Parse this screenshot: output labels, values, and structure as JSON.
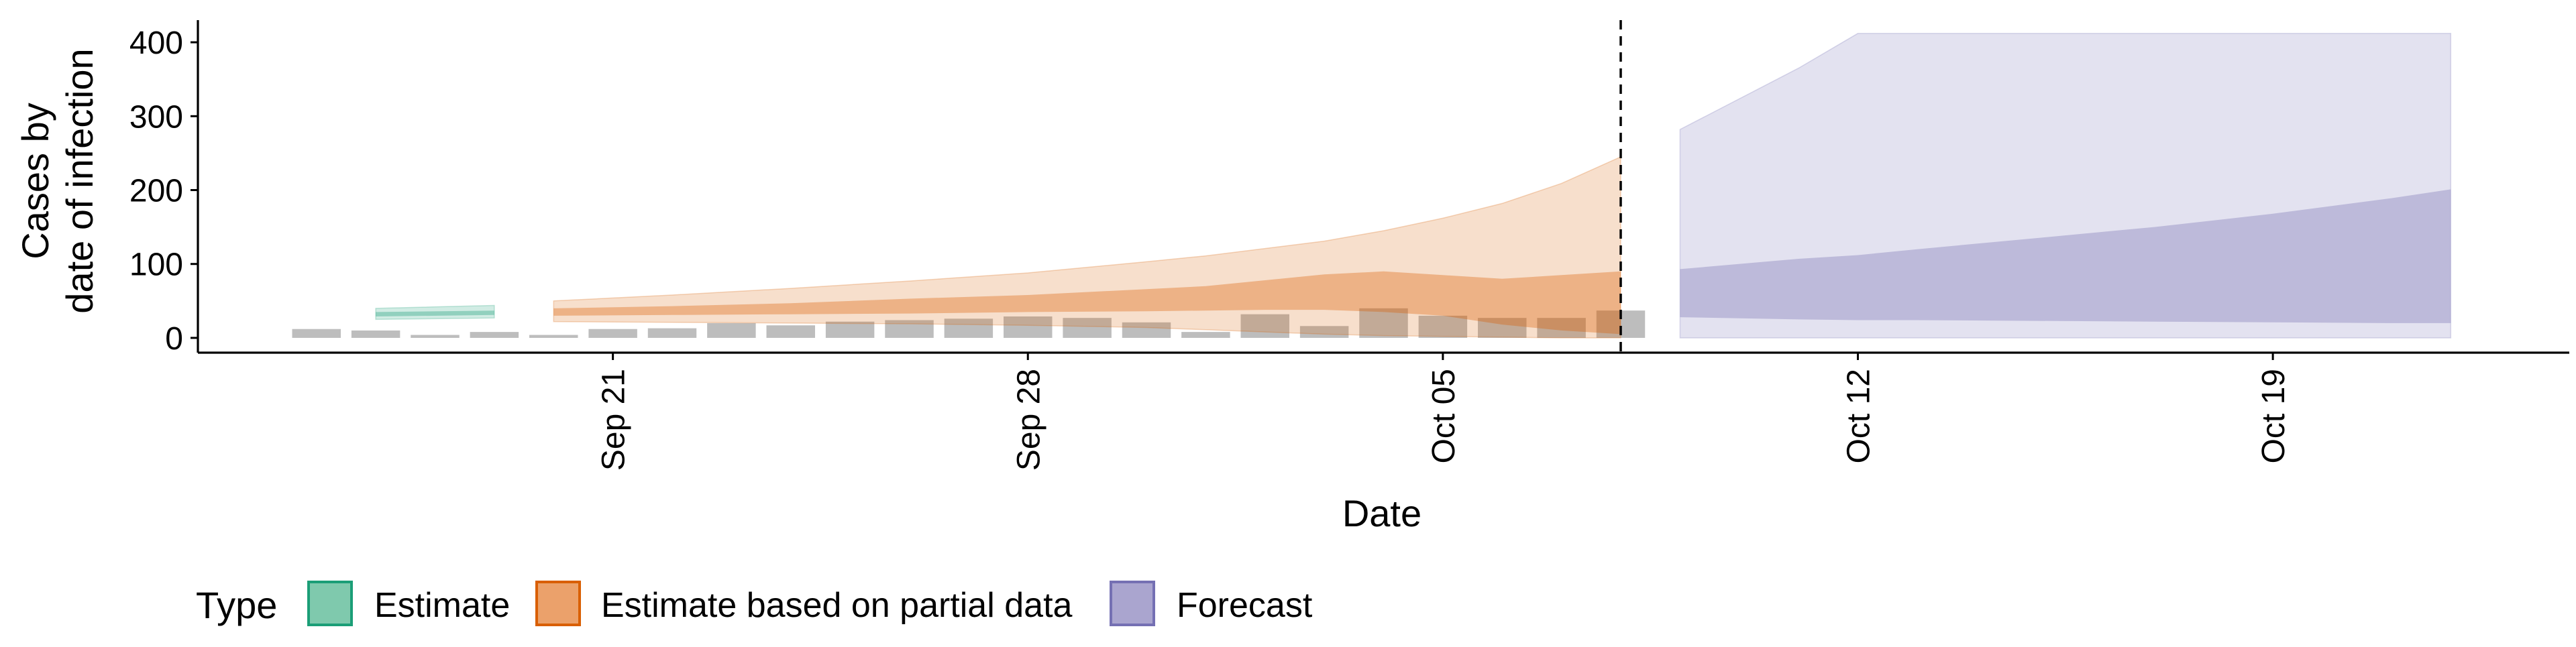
{
  "chart_data": {
    "type": "area",
    "title": "",
    "xlabel": "Date",
    "ylabel_lines": [
      "Cases by",
      "date of infection"
    ],
    "xlim": [
      "2020-09-14",
      "2020-10-24"
    ],
    "ylim": [
      -20,
      430
    ],
    "x_ticks": [
      {
        "date": "2020-09-21",
        "label": "Sep 21"
      },
      {
        "date": "2020-09-28",
        "label": "Sep 28"
      },
      {
        "date": "2020-10-05",
        "label": "Oct 05"
      },
      {
        "date": "2020-10-12",
        "label": "Oct 12"
      },
      {
        "date": "2020-10-19",
        "label": "Oct 19"
      }
    ],
    "y_ticks": [
      0,
      100,
      200,
      300,
      400
    ],
    "grid": false,
    "vline_date": "2020-10-08",
    "legend": {
      "title": "Type",
      "position": "bottom-left",
      "entries": [
        {
          "label": "Estimate",
          "fill": "#7fc9ad",
          "stroke": "#1b9e77"
        },
        {
          "label": "Estimate based on partial data",
          "fill": "#eba16b",
          "stroke": "#d95f02"
        },
        {
          "label": "Forecast",
          "fill": "#aaa5cf",
          "stroke": "#7570b3"
        }
      ]
    },
    "reported_cases": [
      {
        "date": "2020-09-16",
        "value": 12
      },
      {
        "date": "2020-09-17",
        "value": 10
      },
      {
        "date": "2020-09-18",
        "value": 4
      },
      {
        "date": "2020-09-19",
        "value": 8
      },
      {
        "date": "2020-09-20",
        "value": 4
      },
      {
        "date": "2020-09-21",
        "value": 12
      },
      {
        "date": "2020-09-22",
        "value": 13
      },
      {
        "date": "2020-09-23",
        "value": 20
      },
      {
        "date": "2020-09-24",
        "value": 17
      },
      {
        "date": "2020-09-25",
        "value": 22
      },
      {
        "date": "2020-09-26",
        "value": 24
      },
      {
        "date": "2020-09-27",
        "value": 26
      },
      {
        "date": "2020-09-28",
        "value": 29
      },
      {
        "date": "2020-09-29",
        "value": 27
      },
      {
        "date": "2020-09-30",
        "value": 21
      },
      {
        "date": "2020-10-01",
        "value": 8
      },
      {
        "date": "2020-10-02",
        "value": 32
      },
      {
        "date": "2020-10-03",
        "value": 16
      },
      {
        "date": "2020-10-04",
        "value": 40
      },
      {
        "date": "2020-10-05",
        "value": 30
      },
      {
        "date": "2020-10-06",
        "value": 27
      },
      {
        "date": "2020-10-07",
        "value": 27
      },
      {
        "date": "2020-10-08",
        "value": 37
      }
    ],
    "series": [
      {
        "name": "Estimate",
        "color": "#1b9e77",
        "x": [
          "2020-09-17",
          "2020-09-19"
        ],
        "outer_lower": [
          25,
          27
        ],
        "outer_upper": [
          40,
          44
        ],
        "inner_lower": [
          29,
          31
        ],
        "inner_upper": [
          35,
          37
        ]
      },
      {
        "name": "Estimate based on partial data",
        "color": "#d95f02",
        "x": [
          "2020-09-20",
          "2020-09-22",
          "2020-09-24",
          "2020-09-26",
          "2020-09-28",
          "2020-09-30",
          "2020-10-01",
          "2020-10-02",
          "2020-10-03",
          "2020-10-04",
          "2020-10-05",
          "2020-10-06",
          "2020-10-07",
          "2020-10-08"
        ],
        "outer_lower": [
          22,
          21,
          20,
          19,
          17,
          14,
          11,
          8,
          5,
          3,
          2,
          1,
          0,
          0
        ],
        "outer_upper": [
          50,
          58,
          67,
          77,
          88,
          103,
          111,
          121,
          131,
          145,
          162,
          182,
          209,
          245
        ],
        "inner_lower": [
          30,
          31,
          32,
          33,
          35,
          36,
          37,
          38,
          38,
          35,
          30,
          18,
          10,
          5
        ],
        "inner_upper": [
          40,
          43,
          47,
          53,
          58,
          66,
          70,
          78,
          86,
          90,
          85,
          80,
          85,
          90
        ]
      },
      {
        "name": "Forecast",
        "color": "#7570b3",
        "x": [
          "2020-10-09",
          "2020-10-11",
          "2020-10-12",
          "2020-10-13",
          "2020-10-15",
          "2020-10-17",
          "2020-10-19",
          "2020-10-21",
          "2020-10-22"
        ],
        "outer_lower": [
          0,
          0,
          0,
          0,
          0,
          0,
          0,
          0,
          0
        ],
        "outer_upper": [
          282,
          365,
          412,
          412,
          412,
          412,
          412,
          412,
          412
        ],
        "inner_lower": [
          28,
          25,
          24,
          24,
          23,
          22,
          21,
          20,
          20
        ],
        "inner_upper": [
          93,
          107,
          112,
          120,
          135,
          150,
          168,
          189,
          201
        ]
      }
    ]
  }
}
